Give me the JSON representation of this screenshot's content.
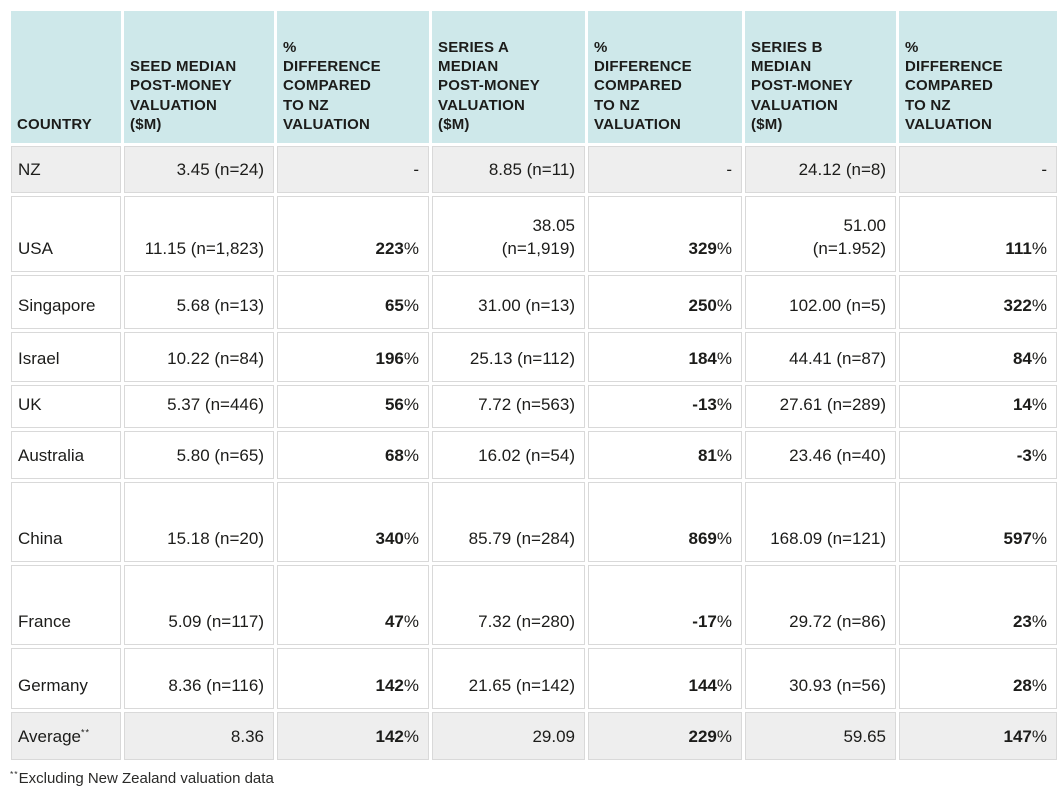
{
  "colors": {
    "header_bg": "#cee8ea",
    "shaded_row_bg": "#eeeeee",
    "cell_border": "#d9d9d9",
    "text": "#1c1c1a"
  },
  "table": {
    "columns": [
      {
        "id": "country",
        "label": "COUNTRY"
      },
      {
        "id": "seed",
        "label": "SEED MEDIAN\nPOST-MONEY\nVALUATION\n($M)"
      },
      {
        "id": "seed_pct",
        "label": "%\nDIFFERENCE\nCOMPARED\nTO NZ\nVALUATION"
      },
      {
        "id": "series_a",
        "label": "SERIES A\nMEDIAN\nPOST-MONEY\nVALUATION\n($M)"
      },
      {
        "id": "series_a_pct",
        "label": "%\nDIFFERENCE\nCOMPARED\nTO NZ\nVALUATION"
      },
      {
        "id": "series_b",
        "label": "SERIES B\nMEDIAN\nPOST-MONEY\nVALUATION\n($M)"
      },
      {
        "id": "series_b_pct",
        "label": "%\nDIFFERENCE\nCOMPARED\nTO NZ\nVALUATION"
      }
    ],
    "rows": [
      {
        "country": "NZ",
        "shaded": true,
        "seed": "3.45 (n=24)",
        "seed_pct": "-",
        "series_a": "8.85 (n=11)",
        "series_a_pct": "-",
        "series_b": "24.12 (n=8)",
        "series_b_pct": "-"
      },
      {
        "country": "USA",
        "shaded": false,
        "seed": "11.15 (n=1,823)",
        "seed_pct": "223%",
        "series_a": "38.05\n(n=1,919)",
        "series_a_pct": "329%",
        "series_b": "51.00\n(n=1.952)",
        "series_b_pct": "111%"
      },
      {
        "country": "Singapore",
        "shaded": false,
        "seed": "5.68 (n=13)",
        "seed_pct": "65%",
        "series_a": "31.00 (n=13)",
        "series_a_pct": "250%",
        "series_b": "102.00 (n=5)",
        "series_b_pct": "322%"
      },
      {
        "country": "Israel",
        "shaded": false,
        "seed": "10.22 (n=84)",
        "seed_pct": "196%",
        "series_a": "25.13 (n=112)",
        "series_a_pct": "184%",
        "series_b": "44.41 (n=87)",
        "series_b_pct": "84%"
      },
      {
        "country": "UK",
        "shaded": false,
        "seed": "5.37 (n=446)",
        "seed_pct": "56%",
        "series_a": "7.72 (n=563)",
        "series_a_pct": "-13%",
        "series_b": "27.61 (n=289)",
        "series_b_pct": "14%"
      },
      {
        "country": "Australia",
        "shaded": false,
        "seed": "5.80 (n=65)",
        "seed_pct": "68%",
        "series_a": "16.02 (n=54)",
        "series_a_pct": "81%",
        "series_b": "23.46 (n=40)",
        "series_b_pct": "-3%"
      },
      {
        "country": "China",
        "shaded": false,
        "seed": "15.18 (n=20)",
        "seed_pct": "340%",
        "series_a": "85.79 (n=284)",
        "series_a_pct": "869%",
        "series_b": "168.09 (n=121)",
        "series_b_pct": "597%"
      },
      {
        "country": "France",
        "shaded": false,
        "seed": "5.09 (n=117)",
        "seed_pct": "47%",
        "series_a": "7.32 (n=280)",
        "series_a_pct": "-17%",
        "series_b": "29.72 (n=86)",
        "series_b_pct": "23%"
      },
      {
        "country": "Germany",
        "shaded": false,
        "seed": "8.36 (n=116)",
        "seed_pct": "142%",
        "series_a": "21.65 (n=142)",
        "series_a_pct": "144%",
        "series_b": "30.93 (n=56)",
        "series_b_pct": "28%"
      },
      {
        "country": "Average",
        "country_sup": "**",
        "shaded": true,
        "seed": "8.36",
        "seed_pct": "142%",
        "series_a": "29.09",
        "series_a_pct": "229%",
        "series_b": "59.65",
        "series_b_pct": "147%"
      }
    ],
    "footnote": {
      "marker": "**",
      "text": "Excluding New Zealand valuation data"
    }
  }
}
